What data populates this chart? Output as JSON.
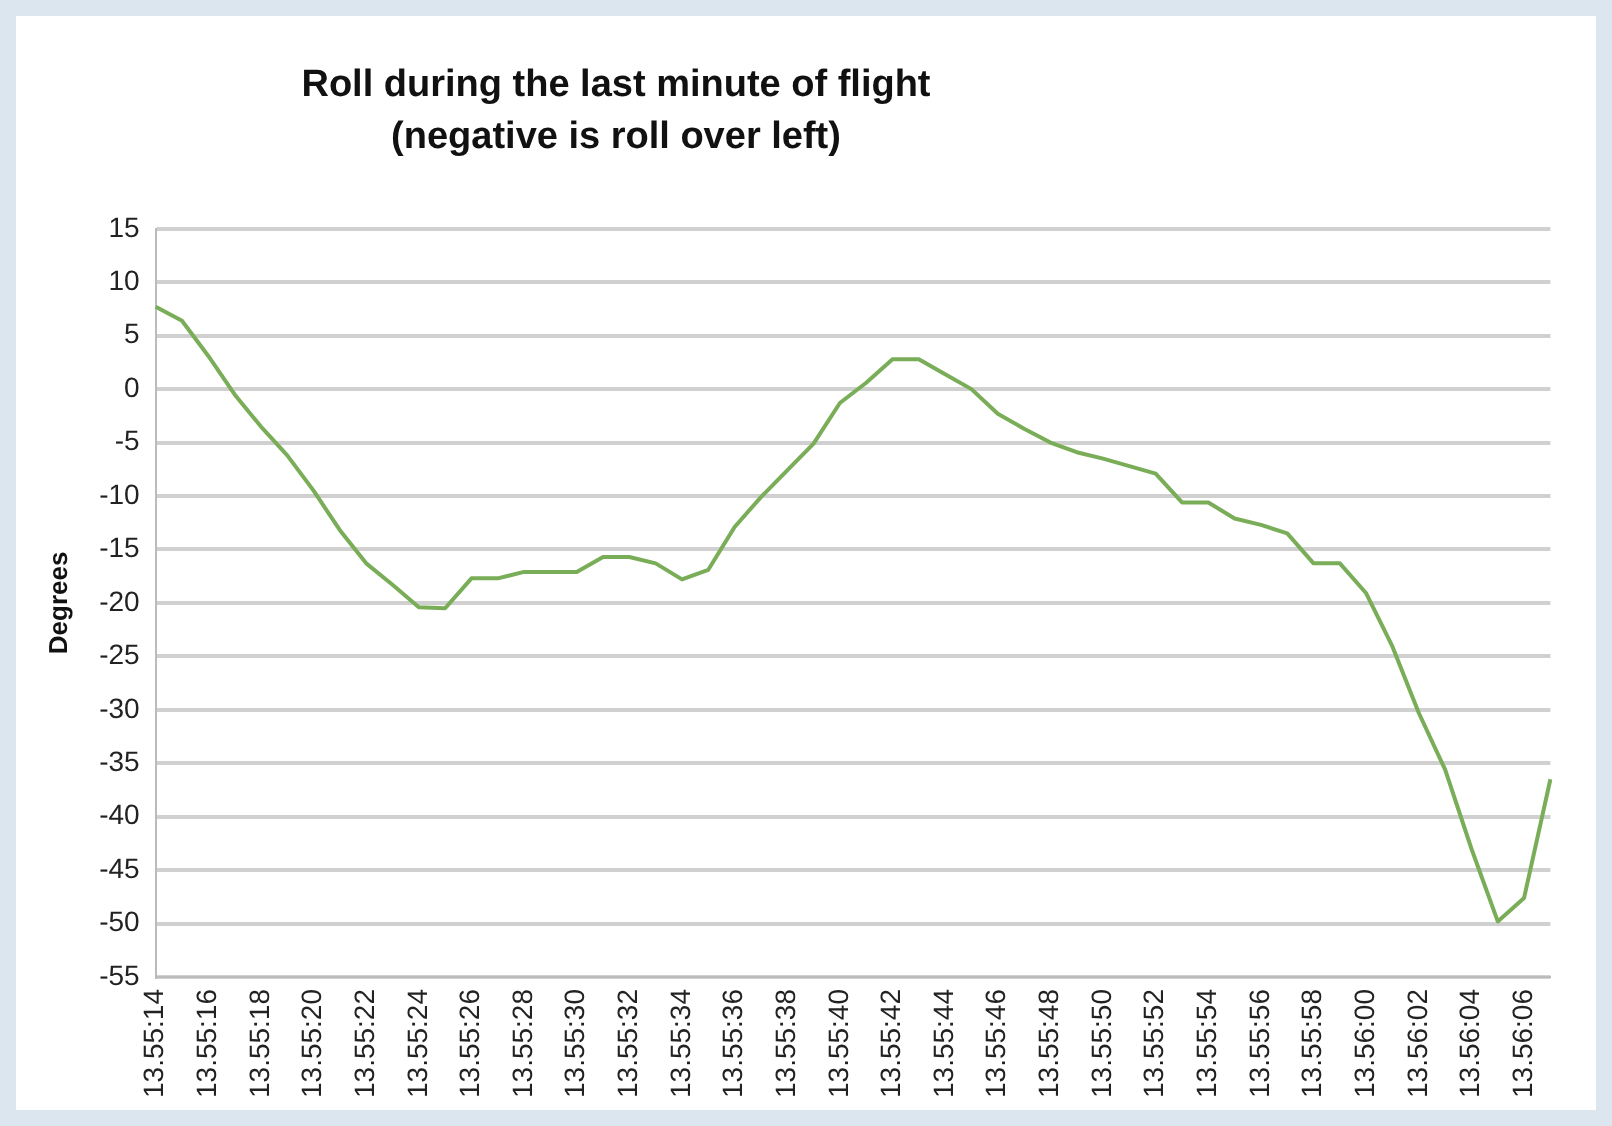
{
  "chart_data": {
    "type": "line",
    "title": "Roll  during the last minute of flight\n(negative is roll over left)",
    "ylabel": "Degrees",
    "categories": [
      "13.55:14",
      null,
      "13.55:16",
      null,
      "13.55:18",
      null,
      "13.55:20",
      null,
      "13.55:22",
      null,
      "13.55:24",
      null,
      "13.55:26",
      null,
      "13.55:28",
      null,
      "13.55:30",
      null,
      "13.55:32",
      null,
      "13.55:34",
      null,
      "13.55:36",
      null,
      "13.55:38",
      null,
      "13.55:40",
      null,
      "13.55:42",
      null,
      "13.55:44",
      null,
      "13.55:46",
      null,
      "13.55:48",
      null,
      "13.55:50",
      null,
      "13.55:52",
      null,
      "13.55:54",
      null,
      "13.55:56",
      null,
      "13.55:58",
      null,
      "13.56:00",
      null,
      "13.56:02",
      null,
      "13.56:04",
      null,
      "13.56:06",
      null
    ],
    "series": [
      {
        "color": "#7aad58",
        "values": [
          7.7,
          6.4,
          3.1,
          -0.5,
          -3.5,
          -6.2,
          -9.5,
          -13.2,
          -16.3,
          -18.3,
          -20.4,
          -20.5,
          -17.7,
          -17.7,
          -17.1,
          -17.1,
          -17.1,
          -15.7,
          -15.7,
          -16.3,
          -17.8,
          -16.9,
          -12.9,
          -10.1,
          -7.6,
          -5.1,
          -1.3,
          0.6,
          2.8,
          2.8,
          1.4,
          0,
          -2.3,
          -3.7,
          -5,
          -5.9,
          -6.5,
          -7.2,
          -7.9,
          -10.6,
          -10.6,
          -12.1,
          -12.7,
          -13.5,
          -16.3,
          -16.3,
          -19.1,
          -24.1,
          -30.3,
          -35.6,
          -43,
          -49.8,
          -47.6,
          -36.5
        ]
      }
    ],
    "ylim": [
      -55,
      15
    ],
    "yticks": [
      15,
      10,
      5,
      0,
      -5,
      -10,
      -15,
      -20,
      -25,
      -30,
      -35,
      -40,
      -45,
      -50,
      -55
    ],
    "grid": "y",
    "legend": false,
    "marker": "none",
    "line_style": "solid"
  }
}
